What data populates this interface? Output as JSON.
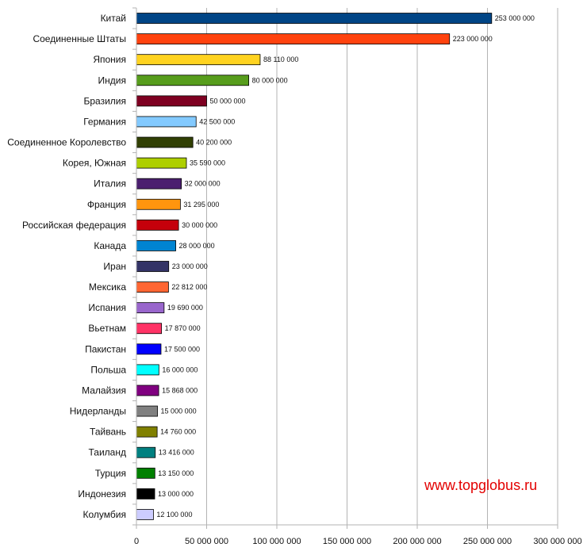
{
  "chart_data": {
    "type": "bar",
    "orientation": "horizontal",
    "categories": [
      "Китай",
      "Соединенные Штаты",
      "Япония",
      "Индия",
      "Бразилия",
      "Германия",
      "Соединенное Королевство",
      "Корея, Южная",
      "Италия",
      "Франция",
      "Российская федерация",
      "Канада",
      "Иран",
      "Мексика",
      "Испания",
      "Вьетнам",
      "Пакистан",
      "Польша",
      "Малайзия",
      "Нидерланды",
      "Тайвань",
      "Таиланд",
      "Турция",
      "Индонезия",
      "Колумбия"
    ],
    "values": [
      253000000,
      223000000,
      88110000,
      80000000,
      50000000,
      42500000,
      40200000,
      35590000,
      32000000,
      31295000,
      30000000,
      28000000,
      23000000,
      22812000,
      19690000,
      17870000,
      17500000,
      16000000,
      15868000,
      15000000,
      14760000,
      13416000,
      13150000,
      13000000,
      12100000
    ],
    "value_labels": [
      "253 000 000",
      "223 000 000",
      "88 110 000",
      "80 000 000",
      "50 000 000",
      "42 500 000",
      "40 200 000",
      "35 590 000",
      "32 000 000",
      "31 295 000",
      "30 000 000",
      "28 000 000",
      "23 000 000",
      "22 812 000",
      "19 690 000",
      "17 870 000",
      "17 500 000",
      "16 000 000",
      "15 868 000",
      "15 000 000",
      "14 760 000",
      "13 416 000",
      "13 150 000",
      "13 000 000",
      "12 100 000"
    ],
    "colors": [
      "#004586",
      "#ff420e",
      "#ffd320",
      "#579d1c",
      "#7e0021",
      "#83caff",
      "#314004",
      "#aecf00",
      "#4b1f6f",
      "#ff950e",
      "#c5000b",
      "#0084d1",
      "#333366",
      "#ff6633",
      "#9966cc",
      "#ff3366",
      "#0000ff",
      "#00ffff",
      "#800080",
      "#808080",
      "#808000",
      "#008080",
      "#008000",
      "#000000",
      "#ccccff"
    ],
    "xlim": [
      0,
      300000000
    ],
    "xticks": [
      0,
      50000000,
      100000000,
      150000000,
      200000000,
      250000000,
      300000000
    ],
    "xtick_labels": [
      "0",
      "50 000 000",
      "100 000 000",
      "150 000 000",
      "200 000 000",
      "250 000 000",
      "300 000 000"
    ],
    "grid": true,
    "title": "",
    "xlabel": "",
    "ylabel": "",
    "watermark": "www.topglobus.ru"
  }
}
